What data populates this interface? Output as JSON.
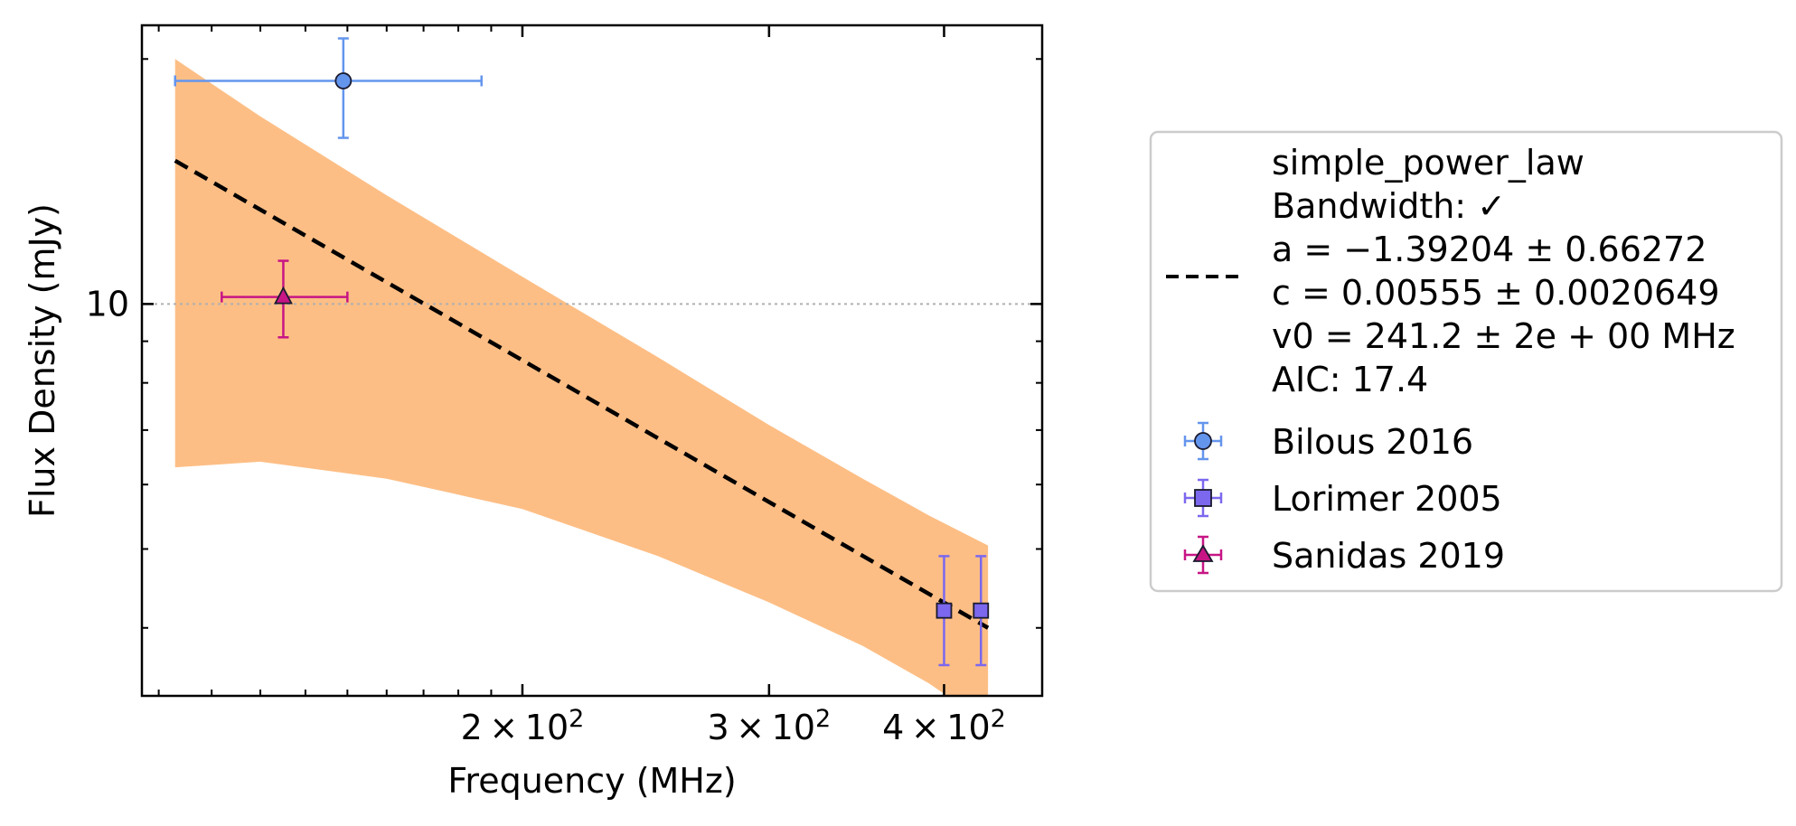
{
  "chart_data": {
    "type": "scatter",
    "xscale": "log",
    "yscale": "log",
    "xlabel": "Frequency (MHz)",
    "ylabel": "Flux Density (mJy)",
    "xlim": [
      107,
      470
    ],
    "ylim": [
      3.3,
      22.0
    ],
    "x_ticks": [
      {
        "value": 200,
        "mantissa": "2",
        "base": "10",
        "exp": "2"
      },
      {
        "value": 300,
        "mantissa": "3",
        "base": "10",
        "exp": "2"
      },
      {
        "value": 400,
        "mantissa": "4",
        "base": "10",
        "exp": "2"
      }
    ],
    "y_ticks": [
      {
        "value": 10,
        "label": "10"
      }
    ],
    "x_minor_ticks": [
      110,
      120,
      130,
      140,
      150,
      160,
      170,
      180,
      190,
      200,
      300,
      400
    ],
    "y_minor_ticks": [
      4,
      5,
      6,
      7,
      8,
      9,
      20
    ],
    "hline": {
      "value": 10,
      "style": "dotted",
      "color": "#b0b0b0"
    },
    "fit": {
      "model": "simple_power_law",
      "a": -1.39204,
      "a_err": 0.66272,
      "c": 0.00555,
      "c_err": 0.0020649,
      "v0": 241.2,
      "x_range": [
        113,
        430
      ],
      "line_points": [
        [
          113,
          15.0
        ],
        [
          430,
          4.0
        ]
      ],
      "band": [
        {
          "x": 113,
          "lo": 6.3,
          "hi": 20.0
        },
        {
          "x": 130,
          "lo": 6.4,
          "hi": 17.0
        },
        {
          "x": 160,
          "lo": 6.1,
          "hi": 13.6
        },
        {
          "x": 200,
          "lo": 5.6,
          "hi": 10.8
        },
        {
          "x": 250,
          "lo": 4.9,
          "hi": 8.6
        },
        {
          "x": 300,
          "lo": 4.3,
          "hi": 7.1
        },
        {
          "x": 350,
          "lo": 3.8,
          "hi": 6.1
        },
        {
          "x": 390,
          "lo": 3.42,
          "hi": 5.5
        },
        {
          "x": 430,
          "lo": 3.05,
          "hi": 5.05
        }
      ],
      "band_color": "#fdbe85",
      "line_color": "#000000"
    },
    "series": [
      {
        "name": "Bilous 2016",
        "marker": "circle",
        "color": "#6495ed",
        "edge": "#1a1a2e",
        "points": [
          {
            "x": 149,
            "y": 18.8,
            "xlo": 113,
            "xhi": 187,
            "ylo": 16.0,
            "yhi": 21.2
          }
        ]
      },
      {
        "name": "Lorimer 2005",
        "marker": "square",
        "color": "#7b68ee",
        "edge": "#1a1a2e",
        "points": [
          {
            "x": 400,
            "y": 4.2,
            "xlo": 400,
            "xhi": 400,
            "ylo": 3.6,
            "yhi": 4.9
          },
          {
            "x": 425,
            "y": 4.2,
            "xlo": 425,
            "xhi": 425,
            "ylo": 3.6,
            "yhi": 4.9
          }
        ]
      },
      {
        "name": "Sanidas 2019",
        "marker": "triangle",
        "color": "#c71585",
        "edge": "#1a1a2e",
        "points": [
          {
            "x": 135,
            "y": 10.2,
            "xlo": 122,
            "xhi": 150,
            "ylo": 9.1,
            "yhi": 11.3
          }
        ]
      }
    ]
  },
  "legend": {
    "fit_lines": [
      "simple_power_law",
      "Bandwidth: ✓",
      "a = −1.39204 ± 0.66272",
      "c = 0.00555 ± 0.0020649",
      "v0 = 241.2 ± 2e + 00 MHz",
      "AIC: 17.4"
    ],
    "entries": [
      "Bilous 2016",
      "Lorimer 2005",
      "Sanidas 2019"
    ]
  }
}
